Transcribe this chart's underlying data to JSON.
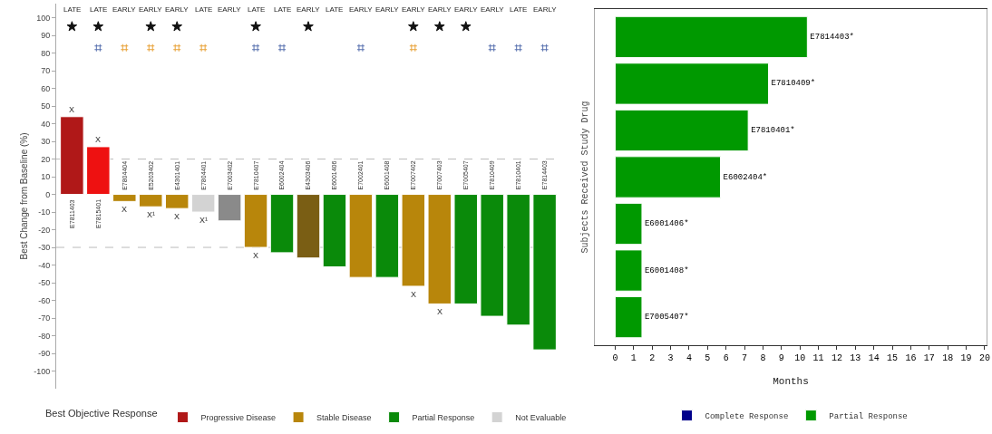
{
  "chart_data": [
    {
      "type": "bar",
      "ylabel": "Best Change from Baseline (%)",
      "legend_title": "Best Objective Response",
      "legend": "bottom",
      "grid": false,
      "tick_labels": "y",
      "categories": [
        "E7811403",
        "E7815401",
        "E7804404",
        "E5203402",
        "E4301401",
        "E7804401",
        "E7003402",
        "E7810407",
        "E6002404",
        "E4303406",
        "E6001406",
        "E7002401",
        "E6001408",
        "E7007402",
        "E7007403",
        "E7005407",
        "E7810409",
        "E7810401",
        "E7814403"
      ],
      "series": [
        {
          "name": "Progressive Disease",
          "color": "#ee1111",
          "colors": [
            "#b01818",
            "#ee1111",
            null,
            null,
            null,
            null,
            null,
            null,
            null,
            null,
            null,
            null,
            null,
            null,
            null,
            null,
            null,
            null,
            null
          ],
          "values": [
            44,
            27,
            null,
            null,
            null,
            null,
            null,
            null,
            null,
            null,
            null,
            null,
            null,
            null,
            null,
            null,
            null,
            null,
            null
          ]
        },
        {
          "name": "Stable Disease",
          "color": "#b8860b",
          "colors": [
            null,
            null,
            "#b8860b",
            "#b8860b",
            "#b8860b",
            null,
            null,
            "#b8860b",
            null,
            "#7a5e14",
            null,
            "#b8860b",
            null,
            "#b8860b",
            "#b8860b",
            null,
            null,
            null,
            null
          ],
          "values": [
            null,
            null,
            -4,
            -7,
            -8,
            null,
            null,
            -30,
            null,
            -36,
            null,
            -47,
            null,
            -52,
            -62,
            null,
            null,
            null,
            null
          ]
        },
        {
          "name": "Partial Response",
          "color": "#0a8a0a",
          "values": [
            null,
            null,
            null,
            null,
            null,
            null,
            null,
            null,
            -33,
            null,
            -41,
            null,
            -47,
            null,
            null,
            -62,
            -69,
            -74,
            -88
          ]
        },
        {
          "name": "Not Evaluable",
          "color": "#d3d3d3",
          "colors": [
            null,
            null,
            null,
            null,
            null,
            "#d3d3d3",
            "#8a8a8a",
            null,
            null,
            null,
            null,
            null,
            null,
            null,
            null,
            null,
            null,
            null,
            null
          ],
          "values": [
            null,
            null,
            null,
            null,
            null,
            -10,
            -15,
            null,
            null,
            null,
            null,
            null,
            null,
            null,
            null,
            null,
            null,
            null,
            null
          ]
        },
        {
          "type": "scatter",
          "marker": "star",
          "color": "#111111",
          "values": [
            95,
            95,
            null,
            95,
            95,
            null,
            null,
            95,
            null,
            95,
            null,
            null,
            null,
            95,
            95,
            95,
            null,
            null,
            null
          ]
        },
        {
          "type": "scatter",
          "marker": "cross",
          "color": "#5a72b0",
          "colors": [
            null,
            "#5a72b0",
            "#e8a33a",
            "#e8a33a",
            "#e8a33a",
            "#e8a33a",
            null,
            "#5a72b0",
            "#5a72b0",
            null,
            null,
            "#5a72b0",
            null,
            "#e8a33a",
            null,
            null,
            "#5a72b0",
            "#5a72b0",
            "#5a72b0"
          ],
          "values": [
            null,
            83,
            83,
            83,
            83,
            83,
            null,
            83,
            83,
            null,
            null,
            83,
            null,
            83,
            null,
            null,
            83,
            83,
            83
          ]
        }
      ],
      "ylim": [
        -110,
        108
      ],
      "yticks": [
        -100,
        -90,
        -80,
        -70,
        -60,
        -50,
        -40,
        -30,
        -20,
        -10,
        0,
        10,
        20,
        30,
        40,
        50,
        60,
        70,
        80,
        90,
        100
      ],
      "ref_lines": [
        {
          "axis": "y",
          "value": 20,
          "color": "#bbbbbb",
          "line_style": "dashed"
        },
        {
          "axis": "y",
          "value": -30,
          "color": "#bbbbbb",
          "line_style": "dashed"
        }
      ],
      "annotations": [
        "LATE LATE EARLY EARLY EARLY LATE EARLY LATE LATE EARLY LATE EARLY EARLY EARLY EARLY EARLY EARLY LATE EARLY",
        {
          "text": "X",
          "x": "E7811403",
          "y": 44
        },
        {
          "text": "X",
          "x": "E7815401",
          "y": 27
        },
        {
          "text": "X",
          "x": "E7804404",
          "y": -4
        },
        {
          "text": "X¹",
          "x": "E5203402",
          "y": -7
        },
        {
          "text": "X",
          "x": "E4301401",
          "y": -8
        },
        {
          "text": "X¹",
          "x": "E7804401",
          "y": -10
        },
        {
          "text": "X",
          "x": "E7810407",
          "y": -30
        },
        {
          "text": "X",
          "x": "E7007402",
          "y": -52
        },
        {
          "text": "X",
          "x": "E7007403",
          "y": -62
        }
      ]
    },
    {
      "type": "bar",
      "orientation": "horizontal",
      "xlabel": "Months",
      "ylabel": "Subjects Received Study Drug",
      "legend": "bottom",
      "grid": false,
      "tick_labels": "x",
      "categories": [
        "E7814403*",
        "E7810409*",
        "E7810401*",
        "E6002404*",
        "E6001406*",
        "E6001408*",
        "E7005407*"
      ],
      "series": [
        {
          "name": "Complete Response",
          "color": "#00008b",
          "values": [
            null,
            null,
            null,
            null,
            null,
            null,
            null
          ]
        },
        {
          "name": "Partial Response",
          "color": "#009900",
          "values": [
            10.4,
            8.3,
            7.2,
            5.7,
            1.45,
            1.45,
            1.45
          ]
        }
      ],
      "xlim": [
        -1.1,
        20.1
      ],
      "xticks": [
        0,
        1,
        2,
        3,
        4,
        5,
        6,
        7,
        8,
        9,
        10,
        11,
        12,
        13,
        14,
        15,
        16,
        17,
        18,
        19,
        20
      ]
    }
  ]
}
